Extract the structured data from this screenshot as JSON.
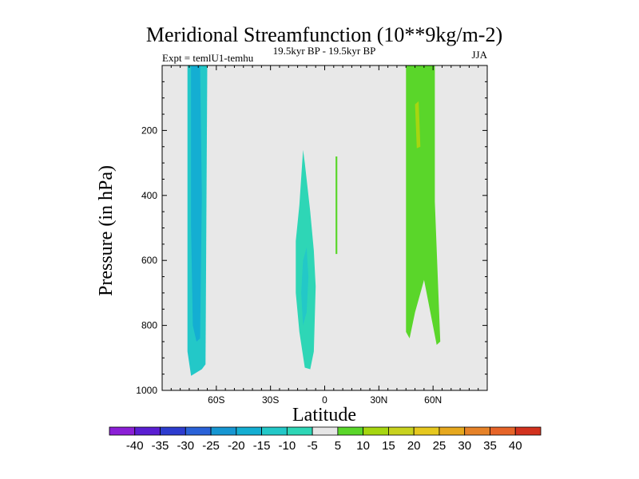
{
  "chart_data": {
    "type": "contour",
    "title": "Meridional Streamfunction (10**9kg/m-2)",
    "left_label": "Expt = temlU1-temhu",
    "center_label": "19.5kyr BP - 19.5kyr BP",
    "right_label": "JJA",
    "xlabel": "Latitude",
    "ylabel": "Pressure (in hPa)",
    "xlim": [
      -90,
      90
    ],
    "ylim": [
      1000,
      0
    ],
    "x_ticks": [
      -60,
      -30,
      0,
      30,
      60
    ],
    "x_tick_labels": [
      "60S",
      "30S",
      "0",
      "30N",
      "60N"
    ],
    "y_ticks": [
      200,
      400,
      600,
      800,
      1000
    ],
    "y_tick_labels": [
      "200",
      "400",
      "600",
      "800",
      "1000"
    ],
    "background_color": "#e8e8e8",
    "regions": [
      {
        "name": "southern-cell-outer",
        "level": -10,
        "color": "#23c8c8",
        "points": [
          [
            -76,
            0
          ],
          [
            -65,
            0
          ],
          [
            -66,
            920
          ],
          [
            -68,
            935
          ],
          [
            -74,
            955
          ],
          [
            -76,
            880
          ]
        ]
      },
      {
        "name": "southern-cell-inner",
        "level": -15,
        "color": "#14aed2",
        "points": [
          [
            -74,
            0
          ],
          [
            -69,
            0
          ],
          [
            -68,
            400
          ],
          [
            -69,
            840
          ],
          [
            -71,
            850
          ],
          [
            -73,
            800
          ],
          [
            -74,
            500
          ]
        ]
      },
      {
        "name": "equatorial-cell-outer",
        "level": -5,
        "color": "#2ed6b6",
        "points": [
          [
            -16,
            540
          ],
          [
            -14,
            430
          ],
          [
            -12,
            260
          ],
          [
            -11,
            300
          ],
          [
            -8,
            450
          ],
          [
            -6,
            570
          ],
          [
            -5,
            680
          ],
          [
            -6,
            880
          ],
          [
            -8,
            935
          ],
          [
            -11,
            930
          ],
          [
            -14,
            820
          ],
          [
            -16,
            700
          ]
        ]
      },
      {
        "name": "equatorial-cell-inner",
        "level": -10,
        "color": "#23c8c8",
        "points": [
          [
            -12,
            600
          ],
          [
            -10,
            560
          ],
          [
            -9,
            650
          ],
          [
            -10,
            760
          ],
          [
            -12,
            800
          ],
          [
            -13,
            700
          ]
        ]
      },
      {
        "name": "small-positive-cell",
        "level": 5,
        "color": "#5ad62a",
        "points": [
          [
            6,
            280
          ],
          [
            7,
            280
          ],
          [
            7,
            580
          ],
          [
            6,
            580
          ]
        ]
      },
      {
        "name": "northern-cell",
        "level": 5,
        "color": "#5ad62a",
        "points": [
          [
            45,
            0
          ],
          [
            61,
            0
          ],
          [
            61,
            420
          ],
          [
            64,
            850
          ],
          [
            62,
            860
          ],
          [
            55,
            660
          ],
          [
            50,
            760
          ],
          [
            47,
            840
          ],
          [
            45,
            820
          ]
        ]
      },
      {
        "name": "northern-cell-core",
        "level": 10,
        "color": "#a6d610",
        "points": [
          [
            50,
            120
          ],
          [
            52,
            110
          ],
          [
            53,
            250
          ],
          [
            51,
            255
          ]
        ]
      }
    ],
    "colorbar": {
      "levels": [
        -40,
        -35,
        -30,
        -25,
        -20,
        -15,
        -10,
        -5,
        5,
        10,
        15,
        20,
        25,
        30,
        35,
        40
      ],
      "colors": [
        "#8b1fd6",
        "#5a1ed2",
        "#2d3ccf",
        "#2a62d8",
        "#1696d2",
        "#14aed2",
        "#23c8c8",
        "#2ed6b6",
        "#e6e6e6",
        "#5ad62a",
        "#a6d610",
        "#c8d21e",
        "#e6c81e",
        "#e6a81e",
        "#e68228",
        "#e66428",
        "#d2321e"
      ]
    }
  }
}
